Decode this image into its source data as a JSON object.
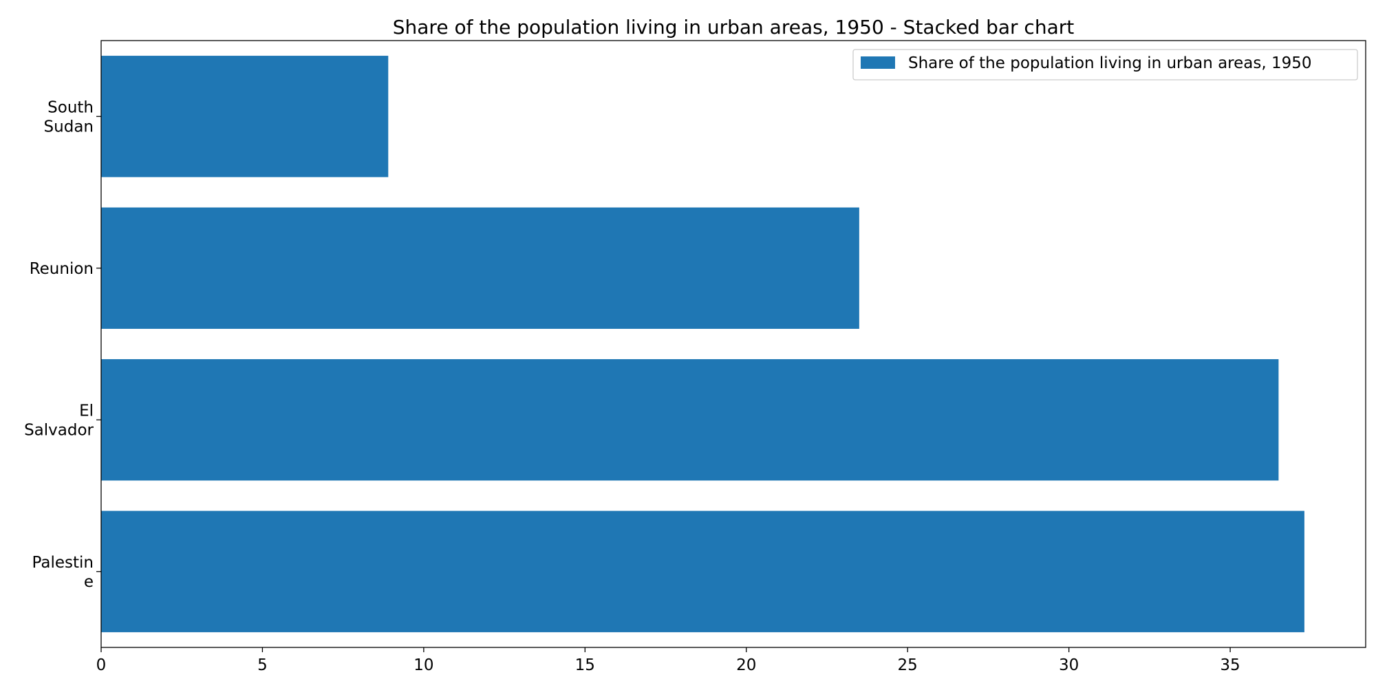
{
  "chart_data": {
    "type": "bar",
    "orientation": "horizontal",
    "title": "Share of the population living in urban areas, 1950 - Stacked bar chart",
    "xlabel": "",
    "ylabel": "",
    "categories": [
      "Palestine",
      "El Salvador",
      "Reunion",
      "South Sudan"
    ],
    "category_tick_labels": [
      [
        "Palestin",
        "e"
      ],
      [
        "El",
        "Salvador"
      ],
      [
        "Reunion"
      ],
      [
        "South",
        "Sudan"
      ]
    ],
    "series": [
      {
        "name": "Share of the population living in urban areas, 1950",
        "values": [
          37.3,
          36.5,
          23.5,
          8.9
        ],
        "color": "#1f77b4"
      }
    ],
    "xlim": [
      0,
      39.2
    ],
    "xticks": [
      0,
      5,
      10,
      15,
      20,
      25,
      30,
      35
    ],
    "grid": false,
    "legend_position": "top-right"
  }
}
